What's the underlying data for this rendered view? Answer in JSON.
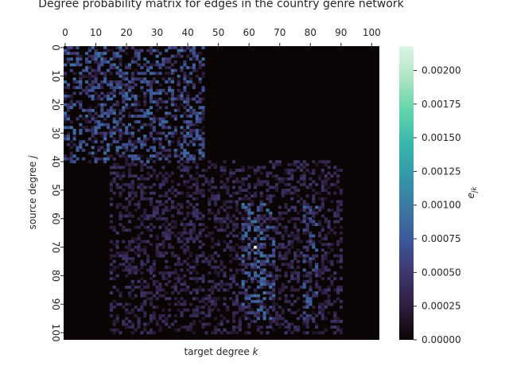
{
  "chart_data": {
    "type": "heatmap",
    "title": "Degree probability matrix for edges in the country genre network",
    "xlabel_text": "target degree ",
    "xlabel_var": "k",
    "ylabel_text": "source degree ",
    "ylabel_var": "j",
    "colorbar_label_main": "e",
    "colorbar_label_sub": "jk",
    "xlim": [
      0,
      103
    ],
    "ylim": [
      0,
      103
    ],
    "x_ticks": [
      "0",
      "10",
      "20",
      "30",
      "40",
      "50",
      "60",
      "70",
      "80",
      "90",
      "100"
    ],
    "y_ticks": [
      "0",
      "10",
      "20",
      "30",
      "40",
      "50",
      "60",
      "70",
      "80",
      "90",
      "100"
    ],
    "tick_values": [
      0,
      10,
      20,
      30,
      40,
      50,
      60,
      70,
      80,
      90,
      100
    ],
    "colorbar_range": [
      0,
      0.00218
    ],
    "colorbar_ticks": [
      "0.00000",
      "0.00025",
      "0.00050",
      "0.00075",
      "0.00100",
      "0.00125",
      "0.00150",
      "0.00175",
      "0.00200"
    ],
    "colorbar_tick_values": [
      0,
      0.00025,
      0.0005,
      0.00075,
      0.001,
      0.00125,
      0.0015,
      0.00175,
      0.002
    ],
    "colormap": "mako",
    "colormap_stops": [
      "#0b0405",
      "#2d1e3e",
      "#3e356b",
      "#3b5698",
      "#3b77a1",
      "#3497a9",
      "#38b7ad",
      "#60d4a9",
      "#abe4c1",
      "#def5e5"
    ],
    "background_color": "#0b0405",
    "peak_cell": {
      "j": 70,
      "k": 62,
      "value": 0.00218
    },
    "dense_regions": [
      {
        "j_range": [
          0,
          40
        ],
        "k_range": [
          0,
          45
        ],
        "mean": 0.00042
      },
      {
        "j_range": [
          40,
          100
        ],
        "k_range": [
          15,
          90
        ],
        "mean": 0.00022
      },
      {
        "j_range": [
          55,
          95
        ],
        "k_range": [
          58,
          68
        ],
        "mean": 0.00045
      },
      {
        "j_range": [
          55,
          95
        ],
        "k_range": [
          78,
          82
        ],
        "mean": 0.0004
      }
    ]
  }
}
